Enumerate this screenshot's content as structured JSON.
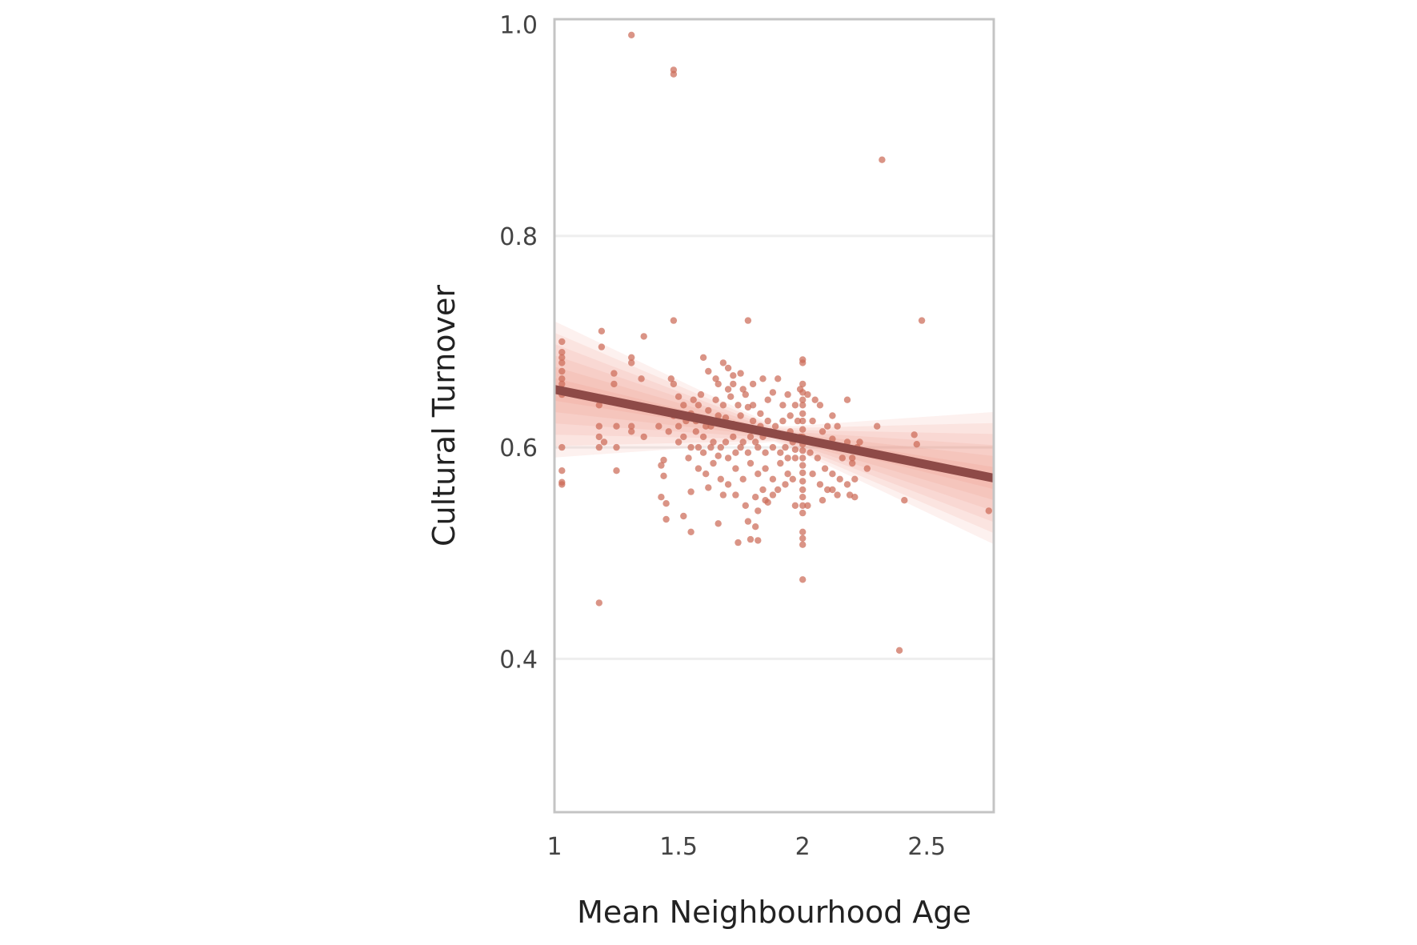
{
  "chart_data": {
    "type": "scatter",
    "title": "",
    "xlabel": "Mean Neighbourhood Age",
    "ylabel": "Cultural Turnover",
    "xlim": [
      1.0,
      2.77
    ],
    "ylim": [
      0.255,
      1.005
    ],
    "x_ticks": [
      1,
      1.5,
      2,
      2.5
    ],
    "x_tick_labels": [
      "1",
      "1.5",
      "2",
      "2.5"
    ],
    "y_ticks": [
      0.4,
      0.6,
      0.8,
      1.0
    ],
    "y_tick_labels": [
      "0.4",
      "0.6",
      "0.8",
      "1.0"
    ],
    "grid": "horizontal",
    "point_color": "#cc6b58",
    "line_color": "#8e4a47",
    "band_color": "#f07a5e",
    "frame_color": "#c4c4c4",
    "grid_color": "#eeeeee",
    "regression": {
      "intercept": 0.7023,
      "slope": -0.0474,
      "ci_halfwidth_at_edges": 0.05,
      "ci_center_x": 1.9
    },
    "points": [
      [
        1.31,
        0.99
      ],
      [
        1.48,
        0.957
      ],
      [
        1.48,
        0.953
      ],
      [
        2.32,
        0.872
      ],
      [
        2.48,
        0.72
      ],
      [
        1.48,
        0.72
      ],
      [
        1.78,
        0.72
      ],
      [
        1.19,
        0.71
      ],
      [
        1.36,
        0.705
      ],
      [
        1.03,
        0.7
      ],
      [
        1.03,
        0.69
      ],
      [
        1.03,
        0.685
      ],
      [
        1.03,
        0.68
      ],
      [
        1.03,
        0.672
      ],
      [
        1.03,
        0.665
      ],
      [
        1.03,
        0.66
      ],
      [
        1.03,
        0.655
      ],
      [
        1.03,
        0.65
      ],
      [
        1.03,
        0.6
      ],
      [
        1.03,
        0.578
      ],
      [
        1.03,
        0.567
      ],
      [
        1.03,
        0.565
      ],
      [
        1.19,
        0.695
      ],
      [
        1.31,
        0.685
      ],
      [
        1.31,
        0.68
      ],
      [
        1.24,
        0.67
      ],
      [
        1.24,
        0.66
      ],
      [
        1.35,
        0.665
      ],
      [
        1.18,
        0.64
      ],
      [
        1.18,
        0.62
      ],
      [
        1.18,
        0.61
      ],
      [
        1.18,
        0.6
      ],
      [
        1.2,
        0.605
      ],
      [
        1.25,
        0.62
      ],
      [
        1.25,
        0.6
      ],
      [
        1.25,
        0.578
      ],
      [
        1.31,
        0.62
      ],
      [
        1.31,
        0.615
      ],
      [
        1.36,
        0.61
      ],
      [
        1.42,
        0.62
      ],
      [
        1.44,
        0.588
      ],
      [
        1.43,
        0.583
      ],
      [
        1.44,
        0.573
      ],
      [
        1.43,
        0.553
      ],
      [
        1.45,
        0.547
      ],
      [
        1.45,
        0.532
      ],
      [
        1.52,
        0.535
      ],
      [
        1.55,
        0.52
      ],
      [
        1.66,
        0.528
      ],
      [
        1.74,
        0.51
      ],
      [
        1.79,
        0.513
      ],
      [
        1.82,
        0.512
      ],
      [
        1.85,
        0.55
      ],
      [
        1.88,
        0.555
      ],
      [
        1.97,
        0.545
      ],
      [
        2.0,
        0.52
      ],
      [
        2.0,
        0.514
      ],
      [
        2.0,
        0.508
      ],
      [
        2.0,
        0.475
      ],
      [
        2.02,
        0.545
      ],
      [
        2.08,
        0.55
      ],
      [
        2.12,
        0.56
      ],
      [
        2.19,
        0.555
      ],
      [
        2.21,
        0.553
      ],
      [
        2.26,
        0.58
      ],
      [
        2.3,
        0.62
      ],
      [
        2.45,
        0.612
      ],
      [
        2.46,
        0.603
      ],
      [
        2.41,
        0.55
      ],
      [
        2.39,
        0.408
      ],
      [
        1.18,
        0.453
      ],
      [
        2.75,
        0.54
      ],
      [
        1.47,
        0.665
      ],
      [
        1.48,
        0.66
      ],
      [
        1.5,
        0.648
      ],
      [
        1.52,
        0.64
      ],
      [
        1.55,
        0.632
      ],
      [
        1.58,
        0.64
      ],
      [
        1.6,
        0.685
      ],
      [
        1.62,
        0.672
      ],
      [
        1.65,
        0.665
      ],
      [
        1.68,
        0.68
      ],
      [
        1.7,
        0.675
      ],
      [
        1.72,
        0.668
      ],
      [
        1.75,
        0.67
      ],
      [
        1.66,
        0.66
      ],
      [
        1.7,
        0.655
      ],
      [
        1.57,
        0.625
      ],
      [
        1.57,
        0.615
      ],
      [
        1.6,
        0.61
      ],
      [
        1.63,
        0.62
      ],
      [
        1.66,
        0.63
      ],
      [
        1.69,
        0.628
      ],
      [
        1.72,
        0.622
      ],
      [
        1.75,
        0.63
      ],
      [
        1.78,
        0.638
      ],
      [
        1.8,
        0.64
      ],
      [
        1.83,
        0.632
      ],
      [
        1.86,
        0.645
      ],
      [
        1.88,
        0.652
      ],
      [
        1.9,
        0.665
      ],
      [
        1.92,
        0.64
      ],
      [
        1.95,
        0.63
      ],
      [
        1.98,
        0.625
      ],
      [
        1.6,
        0.595
      ],
      [
        1.63,
        0.6
      ],
      [
        1.66,
        0.592
      ],
      [
        1.69,
        0.605
      ],
      [
        1.72,
        0.61
      ],
      [
        1.75,
        0.6
      ],
      [
        1.78,
        0.595
      ],
      [
        1.81,
        0.605
      ],
      [
        1.84,
        0.61
      ],
      [
        1.87,
        0.615
      ],
      [
        1.9,
        0.612
      ],
      [
        1.93,
        0.6
      ],
      [
        1.96,
        0.605
      ],
      [
        1.99,
        0.61
      ],
      [
        1.55,
        0.6
      ],
      [
        1.52,
        0.61
      ],
      [
        1.58,
        0.58
      ],
      [
        1.61,
        0.575
      ],
      [
        1.64,
        0.585
      ],
      [
        1.67,
        0.57
      ],
      [
        1.7,
        0.565
      ],
      [
        1.73,
        0.58
      ],
      [
        1.76,
        0.57
      ],
      [
        1.79,
        0.585
      ],
      [
        1.82,
        0.575
      ],
      [
        1.85,
        0.58
      ],
      [
        1.88,
        0.57
      ],
      [
        1.91,
        0.585
      ],
      [
        1.94,
        0.575
      ],
      [
        1.97,
        0.59
      ],
      [
        1.55,
        0.558
      ],
      [
        1.62,
        0.562
      ],
      [
        1.68,
        0.555
      ],
      [
        1.81,
        0.553
      ],
      [
        1.84,
        0.56
      ],
      [
        1.9,
        0.56
      ],
      [
        1.93,
        0.565
      ],
      [
        1.96,
        0.57
      ],
      [
        2.0,
        0.683
      ],
      [
        2.0,
        0.68
      ],
      [
        2.0,
        0.66
      ],
      [
        2.0,
        0.652
      ],
      [
        2.0,
        0.645
      ],
      [
        2.0,
        0.64
      ],
      [
        2.0,
        0.632
      ],
      [
        2.0,
        0.625
      ],
      [
        2.0,
        0.617
      ],
      [
        2.0,
        0.61
      ],
      [
        2.0,
        0.603
      ],
      [
        2.0,
        0.597
      ],
      [
        2.0,
        0.59
      ],
      [
        2.0,
        0.583
      ],
      [
        2.0,
        0.576
      ],
      [
        2.0,
        0.568
      ],
      [
        2.0,
        0.56
      ],
      [
        2.0,
        0.553
      ],
      [
        2.0,
        0.545
      ],
      [
        2.0,
        0.538
      ],
      [
        2.02,
        0.65
      ],
      [
        2.05,
        0.645
      ],
      [
        2.07,
        0.64
      ],
      [
        2.04,
        0.625
      ],
      [
        2.08,
        0.615
      ],
      [
        2.1,
        0.62
      ],
      [
        2.12,
        0.608
      ],
      [
        2.15,
        0.6
      ],
      [
        2.18,
        0.605
      ],
      [
        2.2,
        0.59
      ],
      [
        2.03,
        0.595
      ],
      [
        2.06,
        0.59
      ],
      [
        2.09,
        0.58
      ],
      [
        2.12,
        0.575
      ],
      [
        2.15,
        0.57
      ],
      [
        2.18,
        0.565
      ],
      [
        2.21,
        0.57
      ],
      [
        2.04,
        0.575
      ],
      [
        2.07,
        0.565
      ],
      [
        2.1,
        0.56
      ],
      [
        2.14,
        0.555
      ],
      [
        2.18,
        0.645
      ],
      [
        2.12,
        0.63
      ],
      [
        2.14,
        0.62
      ],
      [
        2.22,
        0.6
      ],
      [
        2.2,
        0.585
      ],
      [
        2.23,
        0.605
      ],
      [
        2.16,
        0.59
      ],
      [
        1.65,
        0.645
      ],
      [
        1.68,
        0.64
      ],
      [
        1.71,
        0.648
      ],
      [
        1.74,
        0.64
      ],
      [
        1.77,
        0.65
      ],
      [
        1.8,
        0.625
      ],
      [
        1.83,
        0.62
      ],
      [
        1.86,
        0.625
      ],
      [
        1.89,
        0.62
      ],
      [
        1.92,
        0.625
      ],
      [
        1.95,
        0.615
      ],
      [
        1.53,
        0.625
      ],
      [
        1.56,
        0.645
      ],
      [
        1.59,
        0.65
      ],
      [
        1.62,
        0.635
      ],
      [
        1.61,
        0.62
      ],
      [
        1.64,
        0.605
      ],
      [
        1.67,
        0.6
      ],
      [
        1.7,
        0.59
      ],
      [
        1.73,
        0.595
      ],
      [
        1.76,
        0.605
      ],
      [
        1.79,
        0.61
      ],
      [
        1.82,
        0.6
      ],
      [
        1.85,
        0.595
      ],
      [
        1.88,
        0.6
      ],
      [
        1.91,
        0.595
      ],
      [
        1.94,
        0.59
      ],
      [
        1.97,
        0.598
      ],
      [
        1.58,
        0.6
      ],
      [
        1.54,
        0.59
      ],
      [
        1.5,
        0.62
      ],
      [
        1.48,
        0.63
      ],
      [
        1.46,
        0.615
      ],
      [
        1.5,
        0.605
      ],
      [
        1.73,
        0.555
      ],
      [
        1.77,
        0.545
      ],
      [
        1.82,
        0.54
      ],
      [
        1.86,
        0.548
      ],
      [
        1.78,
        0.53
      ],
      [
        1.81,
        0.525
      ],
      [
        1.99,
        0.655
      ],
      [
        1.97,
        0.64
      ],
      [
        1.94,
        0.65
      ],
      [
        1.84,
        0.665
      ],
      [
        1.8,
        0.66
      ],
      [
        1.76,
        0.655
      ],
      [
        1.72,
        0.66
      ]
    ]
  }
}
